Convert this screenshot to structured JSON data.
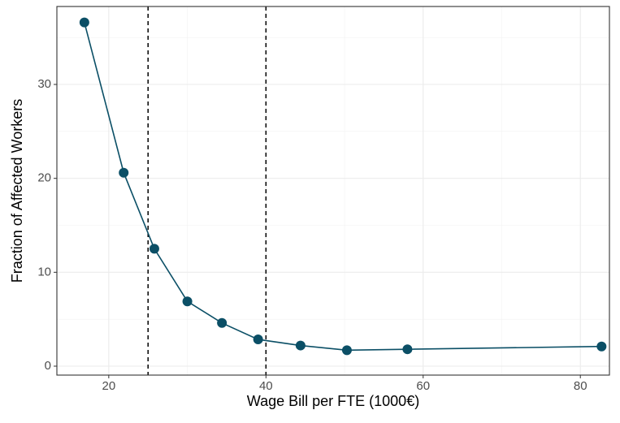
{
  "chart_data": {
    "type": "line",
    "x_label": "Wage Bill per FTE (1000€)",
    "y_label": "Fraction of Affected Workers",
    "x": [
      16.9,
      21.9,
      25.8,
      30.0,
      34.4,
      39.0,
      44.4,
      50.3,
      58.0,
      82.7
    ],
    "series": [
      {
        "color": "#0b4f66",
        "values": [
          36.6,
          20.6,
          12.5,
          6.9,
          4.6,
          2.85,
          2.2,
          1.7,
          1.8,
          2.1
        ]
      }
    ],
    "xlim": [
      13.4,
      83.7
    ],
    "ylim": [
      -0.95,
      38.3
    ],
    "xticks": [
      20,
      40,
      60,
      80
    ],
    "yticks": [
      0,
      10,
      20,
      30
    ],
    "vlines": [
      25,
      40
    ],
    "grid": true
  }
}
